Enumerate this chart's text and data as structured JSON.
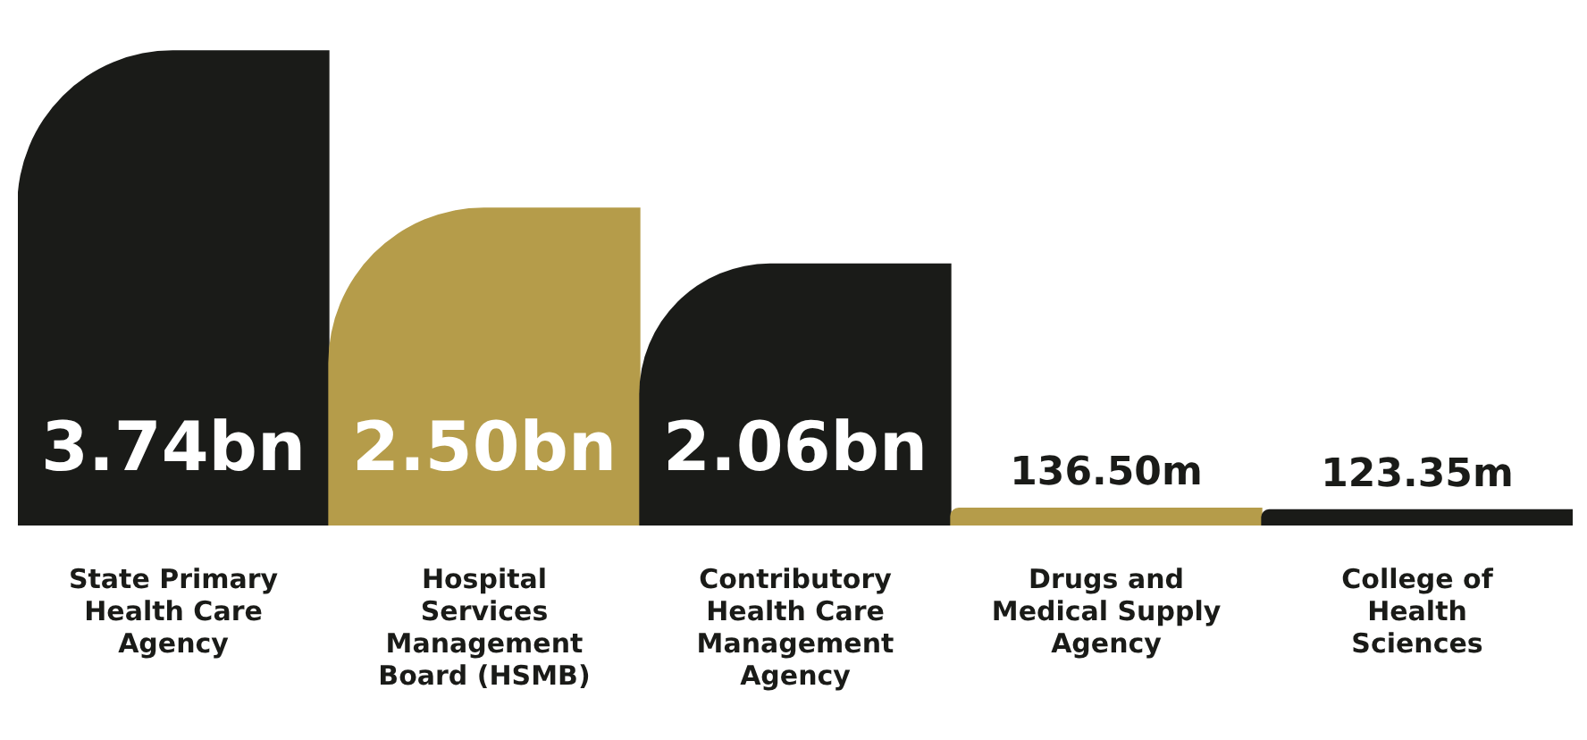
{
  "chart_data": {
    "type": "bar",
    "categories": [
      "State Primary Health Care Agency",
      "Hospital Services Management Board (HSMB)",
      "Contributory Health Care Management Agency",
      "Drugs and Medical Supply Agency",
      "College of Health Sciences"
    ],
    "values": [
      3740000000,
      2500000000,
      2060000000,
      136500000,
      123350000
    ],
    "value_labels": [
      "3.74bn",
      "2.50bn",
      "2.06bn",
      "136.50m",
      "123.35m"
    ],
    "colors": [
      "#1a1b18",
      "#b59c4a",
      "#1a1b18",
      "#b59c4a",
      "#1a1b18"
    ],
    "legend": false,
    "grid": false
  }
}
